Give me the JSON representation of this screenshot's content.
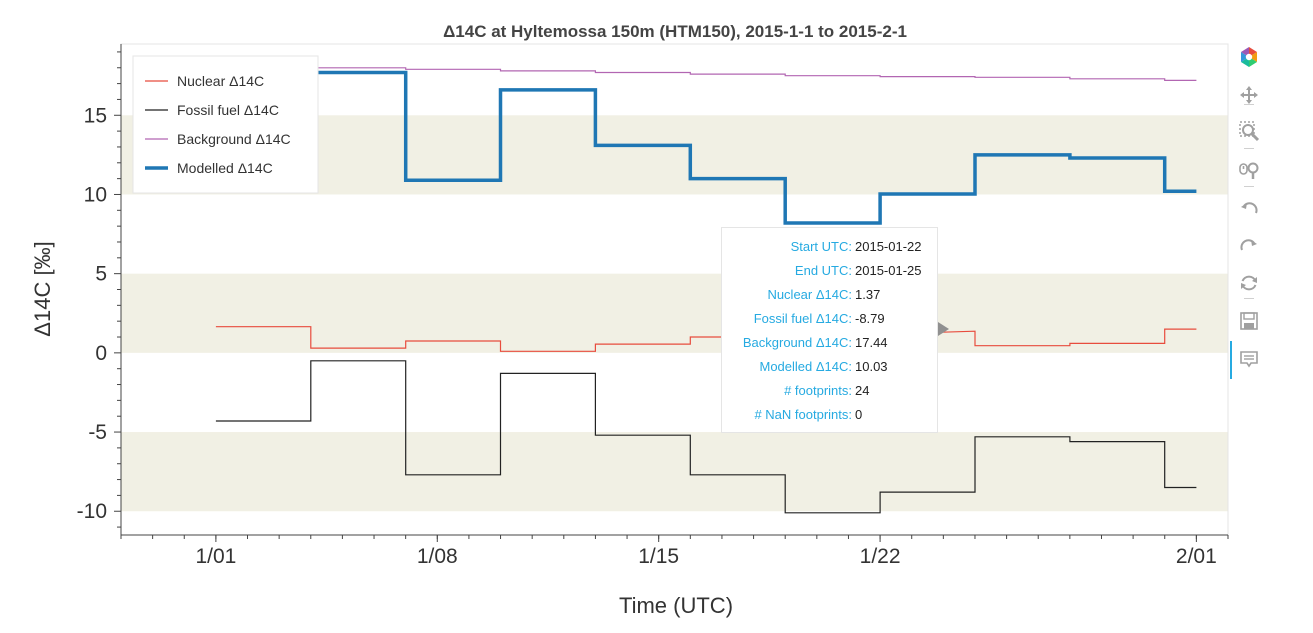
{
  "chart_data": {
    "type": "line",
    "title": "Δ14C at Hyltemossa 150m (HTM150), 2015-1-1 to 2015-2-1",
    "xlabel": "Time (UTC)",
    "ylabel": "Δ14C [‰]",
    "x_ticks": [
      {
        "value": "2015-01-01",
        "label": "1/01"
      },
      {
        "value": "2015-01-08",
        "label": "1/08"
      },
      {
        "value": "2015-01-15",
        "label": "1/15"
      },
      {
        "value": "2015-01-22",
        "label": "1/22"
      },
      {
        "value": "2015-02-01",
        "label": "2/01"
      }
    ],
    "y_ticks": [
      {
        "value": 15,
        "label": "15"
      },
      {
        "value": 10,
        "label": "10"
      },
      {
        "value": 5,
        "label": "5"
      },
      {
        "value": 0,
        "label": "0"
      },
      {
        "value": -5,
        "label": "-5"
      },
      {
        "value": -10,
        "label": "-10"
      }
    ],
    "xlim": [
      "2014-12-29",
      "2015-02-02"
    ],
    "ylim": [
      -11.5,
      19.5
    ],
    "bands": [
      [
        10,
        15
      ],
      [
        0,
        5
      ],
      [
        -10,
        -5
      ]
    ],
    "legend_position": "top-left",
    "series": [
      {
        "name": "Nuclear Δ14C",
        "color": "#e84c3d",
        "width": 1.2,
        "points": [
          [
            "2015-01-01",
            1.65
          ],
          [
            "2015-01-04",
            1.65
          ],
          [
            "2015-01-04",
            0.3
          ],
          [
            "2015-01-07",
            0.3
          ],
          [
            "2015-01-07",
            0.75
          ],
          [
            "2015-01-10",
            0.75
          ],
          [
            "2015-01-10",
            0.1
          ],
          [
            "2015-01-13",
            0.1
          ],
          [
            "2015-01-13",
            0.55
          ],
          [
            "2015-01-16",
            0.55
          ],
          [
            "2015-01-16",
            1.0
          ],
          [
            "2015-01-19",
            1.0
          ],
          [
            "2015-01-25",
            1.37
          ],
          [
            "2015-01-25",
            0.45
          ],
          [
            "2015-01-28",
            0.45
          ],
          [
            "2015-01-28",
            0.6
          ],
          [
            "2015-01-31",
            0.6
          ],
          [
            "2015-01-31",
            1.5
          ],
          [
            "2015-02-01",
            1.5
          ]
        ]
      },
      {
        "name": "Fossil fuel Δ14C",
        "color": "#222222",
        "width": 1.2,
        "points": [
          [
            "2015-01-01",
            -4.3
          ],
          [
            "2015-01-04",
            -4.3
          ],
          [
            "2015-01-04",
            -0.5
          ],
          [
            "2015-01-07",
            -0.5
          ],
          [
            "2015-01-07",
            -7.7
          ],
          [
            "2015-01-10",
            -7.7
          ],
          [
            "2015-01-10",
            -1.3
          ],
          [
            "2015-01-13",
            -1.3
          ],
          [
            "2015-01-13",
            -5.2
          ],
          [
            "2015-01-16",
            -5.2
          ],
          [
            "2015-01-16",
            -7.7
          ],
          [
            "2015-01-19",
            -7.7
          ],
          [
            "2015-01-19",
            -10.1
          ],
          [
            "2015-01-22",
            -10.1
          ],
          [
            "2015-01-22",
            -8.79
          ],
          [
            "2015-01-25",
            -8.79
          ],
          [
            "2015-01-25",
            -5.3
          ],
          [
            "2015-01-28",
            -5.3
          ],
          [
            "2015-01-28",
            -5.6
          ],
          [
            "2015-01-31",
            -5.6
          ],
          [
            "2015-01-31",
            -8.5
          ],
          [
            "2015-02-01",
            -8.5
          ]
        ]
      },
      {
        "name": "Background Δ14C",
        "color": "#b266b2",
        "width": 1.2,
        "points": [
          [
            "2015-01-01",
            18.0
          ],
          [
            "2015-01-07",
            18.0
          ],
          [
            "2015-01-07",
            17.9
          ],
          [
            "2015-01-10",
            17.9
          ],
          [
            "2015-01-10",
            17.8
          ],
          [
            "2015-01-13",
            17.8
          ],
          [
            "2015-01-13",
            17.7
          ],
          [
            "2015-01-16",
            17.7
          ],
          [
            "2015-01-16",
            17.6
          ],
          [
            "2015-01-19",
            17.6
          ],
          [
            "2015-01-19",
            17.5
          ],
          [
            "2015-01-22",
            17.5
          ],
          [
            "2015-01-22",
            17.44
          ],
          [
            "2015-01-25",
            17.44
          ],
          [
            "2015-01-25",
            17.4
          ],
          [
            "2015-01-28",
            17.4
          ],
          [
            "2015-01-28",
            17.3
          ],
          [
            "2015-01-31",
            17.3
          ],
          [
            "2015-01-31",
            17.2
          ],
          [
            "2015-02-01",
            17.2
          ]
        ]
      },
      {
        "name": "Modelled Δ14C",
        "color": "#1f77b4",
        "width": 3.5,
        "points": [
          [
            "2015-01-01",
            17.7
          ],
          [
            "2015-01-07",
            17.7
          ],
          [
            "2015-01-07",
            10.9
          ],
          [
            "2015-01-10",
            10.9
          ],
          [
            "2015-01-10",
            16.6
          ],
          [
            "2015-01-13",
            16.6
          ],
          [
            "2015-01-13",
            13.1
          ],
          [
            "2015-01-16",
            13.1
          ],
          [
            "2015-01-16",
            11.0
          ],
          [
            "2015-01-19",
            11.0
          ],
          [
            "2015-01-19",
            8.2
          ],
          [
            "2015-01-22",
            8.2
          ],
          [
            "2015-01-22",
            10.03
          ],
          [
            "2015-01-25",
            10.03
          ],
          [
            "2015-01-25",
            12.5
          ],
          [
            "2015-01-28",
            12.5
          ],
          [
            "2015-01-28",
            12.3
          ],
          [
            "2015-01-31",
            12.3
          ],
          [
            "2015-01-31",
            10.2
          ],
          [
            "2015-02-01",
            10.2
          ]
        ]
      }
    ]
  },
  "tooltip": {
    "rows": [
      {
        "label": "Start UTC:",
        "value": "2015-01-22"
      },
      {
        "label": "End UTC:",
        "value": "2015-01-25"
      },
      {
        "label": "Nuclear Δ14C:",
        "value": "1.37"
      },
      {
        "label": "Fossil fuel Δ14C:",
        "value": "-8.79"
      },
      {
        "label": "Background Δ14C:",
        "value": "17.44"
      },
      {
        "label": "Modelled Δ14C:",
        "value": "10.03"
      },
      {
        "label": "# footprints:",
        "value": "24"
      },
      {
        "label": "# NaN footprints:",
        "value": "0"
      }
    ]
  },
  "toolbar": {
    "tools": [
      {
        "name": "bokeh-logo-icon",
        "interactable": false
      },
      {
        "name": "pan-tool-icon",
        "interactable": true
      },
      {
        "name": "box-zoom-tool-icon",
        "interactable": true
      },
      {
        "name": "wheel-zoom-tool-icon",
        "interactable": true
      },
      {
        "name": "undo-tool-icon",
        "interactable": true
      },
      {
        "name": "redo-tool-icon",
        "interactable": true
      },
      {
        "name": "reset-tool-icon",
        "interactable": true
      },
      {
        "name": "save-tool-icon",
        "interactable": true
      },
      {
        "name": "hover-tool-icon",
        "interactable": true
      }
    ],
    "active_color": "#26aae1"
  }
}
